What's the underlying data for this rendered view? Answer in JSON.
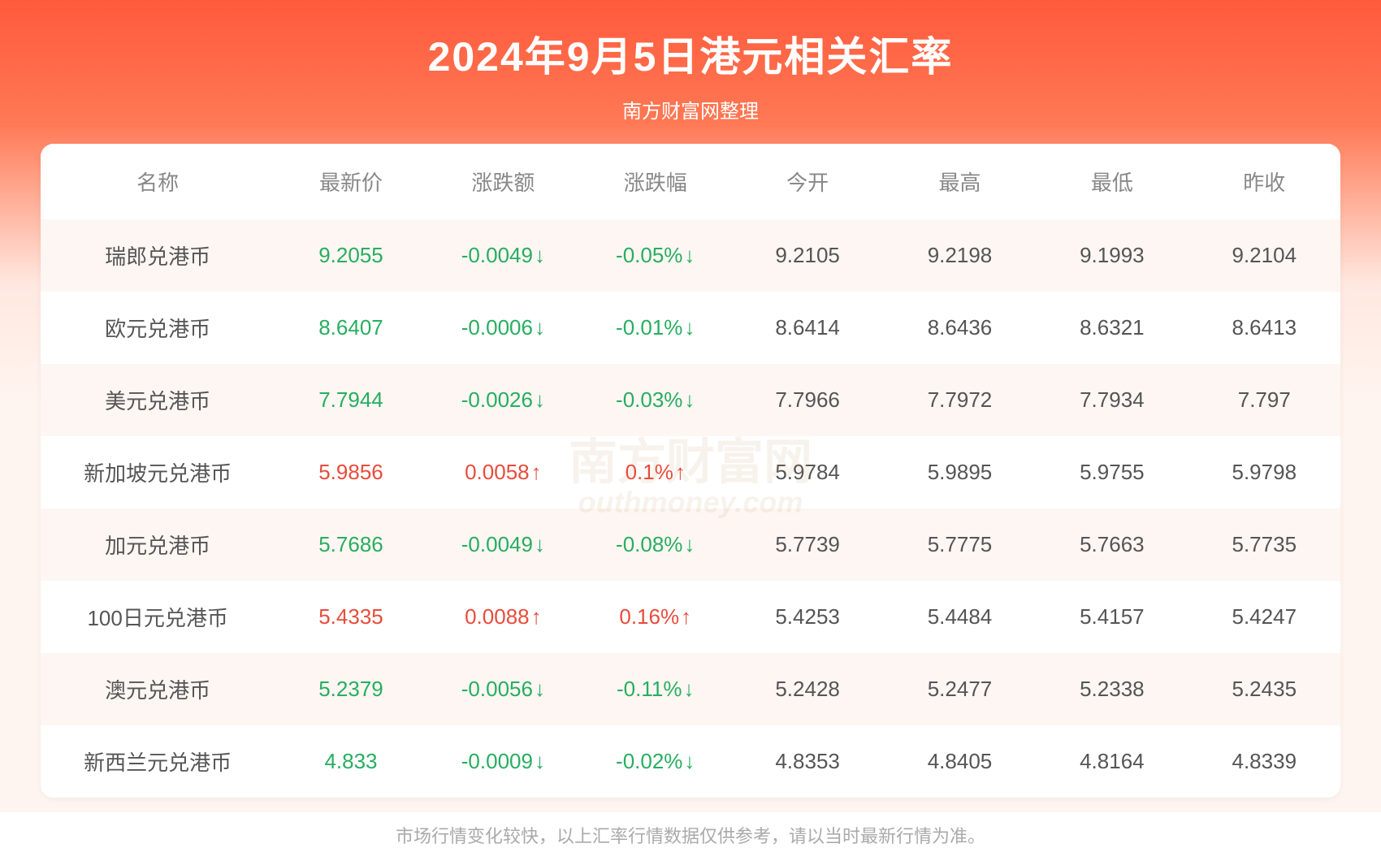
{
  "header": {
    "title": "2024年9月5日港元相关汇率",
    "subtitle": "南方财富网整理"
  },
  "watermark": {
    "main": "南方财富网",
    "sub": "outhmoney.com"
  },
  "table": {
    "type": "table",
    "background_color": "#ffffff",
    "stripe_color": "#fdf6f2",
    "header_color": "#888888",
    "text_color": "#555555",
    "up_color": "#e74c3c",
    "down_color": "#27ae60",
    "header_fontsize": 26,
    "cell_fontsize": 26,
    "columns": [
      {
        "key": "name",
        "label": "名称",
        "width": "18%"
      },
      {
        "key": "latest",
        "label": "最新价",
        "width": "11.7%"
      },
      {
        "key": "change",
        "label": "涨跌额",
        "width": "11.7%"
      },
      {
        "key": "change_pct",
        "label": "涨跌幅",
        "width": "11.7%"
      },
      {
        "key": "open",
        "label": "今开",
        "width": "11.7%"
      },
      {
        "key": "high",
        "label": "最高",
        "width": "11.7%"
      },
      {
        "key": "low",
        "label": "最低",
        "width": "11.7%"
      },
      {
        "key": "prev_close",
        "label": "昨收",
        "width": "11.7%"
      }
    ],
    "rows": [
      {
        "name": "瑞郎兑港币",
        "latest": "9.2055",
        "change": "-0.0049",
        "change_pct": "-0.05%",
        "open": "9.2105",
        "high": "9.2198",
        "low": "9.1993",
        "prev_close": "9.2104",
        "direction": "down"
      },
      {
        "name": "欧元兑港币",
        "latest": "8.6407",
        "change": "-0.0006",
        "change_pct": "-0.01%",
        "open": "8.6414",
        "high": "8.6436",
        "low": "8.6321",
        "prev_close": "8.6413",
        "direction": "down"
      },
      {
        "name": "美元兑港币",
        "latest": "7.7944",
        "change": "-0.0026",
        "change_pct": "-0.03%",
        "open": "7.7966",
        "high": "7.7972",
        "low": "7.7934",
        "prev_close": "7.797",
        "direction": "down"
      },
      {
        "name": "新加坡元兑港币",
        "latest": "5.9856",
        "change": "0.0058",
        "change_pct": "0.1%",
        "open": "5.9784",
        "high": "5.9895",
        "low": "5.9755",
        "prev_close": "5.9798",
        "direction": "up"
      },
      {
        "name": "加元兑港币",
        "latest": "5.7686",
        "change": "-0.0049",
        "change_pct": "-0.08%",
        "open": "5.7739",
        "high": "5.7775",
        "low": "5.7663",
        "prev_close": "5.7735",
        "direction": "down"
      },
      {
        "name": "100日元兑港币",
        "latest": "5.4335",
        "change": "0.0088",
        "change_pct": "0.16%",
        "open": "5.4253",
        "high": "5.4484",
        "low": "5.4157",
        "prev_close": "5.4247",
        "direction": "up"
      },
      {
        "name": "澳元兑港币",
        "latest": "5.2379",
        "change": "-0.0056",
        "change_pct": "-0.11%",
        "open": "5.2428",
        "high": "5.2477",
        "low": "5.2338",
        "prev_close": "5.2435",
        "direction": "down"
      },
      {
        "name": "新西兰元兑港币",
        "latest": "4.833",
        "change": "-0.0009",
        "change_pct": "-0.02%",
        "open": "4.8353",
        "high": "4.8405",
        "low": "4.8164",
        "prev_close": "4.8339",
        "direction": "down"
      }
    ]
  },
  "footer": {
    "note": "市场行情变化较快，以上汇率行情数据仅供参考，请以当时最新行情为准。"
  },
  "styling": {
    "gradient_start": "#ff5a3c",
    "gradient_mid": "#ff7854",
    "gradient_end": "#fff5f0",
    "title_color": "#ffffff",
    "title_fontsize": 50,
    "subtitle_fontsize": 24,
    "footer_color": "#aaaaaa",
    "footer_fontsize": 22,
    "border_radius": 16
  }
}
